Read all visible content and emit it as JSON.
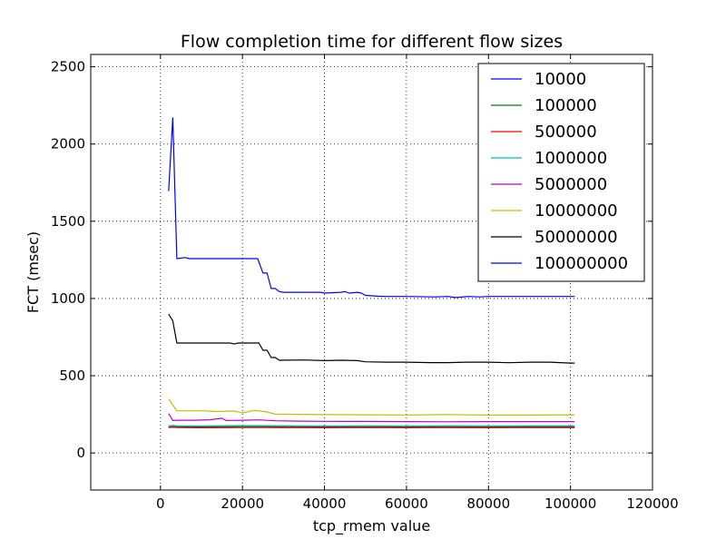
{
  "chart_data": {
    "type": "line",
    "title": "Flow completion time for different flow sizes",
    "xlabel": "tcp_rmem value",
    "ylabel": "FCT (msec)",
    "xlim": [
      -17000,
      120000
    ],
    "ylim": [
      -240,
      2580
    ],
    "x_ticks": [
      0,
      20000,
      40000,
      60000,
      80000,
      100000,
      120000
    ],
    "y_ticks": [
      0,
      500,
      1000,
      1500,
      2000,
      2500
    ],
    "grid": true,
    "grid_style": "dotted",
    "legend_position": "top-right",
    "series": [
      {
        "name": "10000",
        "color": "#0000ff",
        "points": [
          [
            2000,
            168
          ],
          [
            3000,
            172
          ],
          [
            4000,
            166
          ],
          [
            10000,
            165
          ],
          [
            20000,
            168
          ],
          [
            30000,
            164
          ],
          [
            40000,
            166
          ],
          [
            50000,
            165
          ],
          [
            60000,
            166
          ],
          [
            70000,
            164
          ],
          [
            80000,
            166
          ],
          [
            90000,
            165
          ],
          [
            101000,
            165
          ]
        ]
      },
      {
        "name": "100000",
        "color": "#008000",
        "points": [
          [
            2000,
            170
          ],
          [
            3000,
            173
          ],
          [
            4000,
            170
          ],
          [
            10000,
            172
          ],
          [
            20000,
            170
          ],
          [
            30000,
            171
          ],
          [
            40000,
            172
          ],
          [
            50000,
            170
          ],
          [
            60000,
            171
          ],
          [
            70000,
            172
          ],
          [
            80000,
            170
          ],
          [
            90000,
            171
          ],
          [
            101000,
            171
          ]
        ]
      },
      {
        "name": "500000",
        "color": "#ff0000",
        "points": [
          [
            2000,
            164
          ],
          [
            3000,
            166
          ],
          [
            4000,
            164
          ],
          [
            10000,
            163
          ],
          [
            20000,
            164
          ],
          [
            30000,
            165
          ],
          [
            40000,
            163
          ],
          [
            50000,
            164
          ],
          [
            60000,
            163
          ],
          [
            70000,
            164
          ],
          [
            80000,
            163
          ],
          [
            90000,
            164
          ],
          [
            101000,
            164
          ]
        ]
      },
      {
        "name": "1000000",
        "color": "#00bfbf",
        "points": [
          [
            2000,
            175
          ],
          [
            3000,
            178
          ],
          [
            4000,
            176
          ],
          [
            10000,
            175
          ],
          [
            20000,
            177
          ],
          [
            30000,
            176
          ],
          [
            40000,
            175
          ],
          [
            50000,
            176
          ],
          [
            60000,
            175
          ],
          [
            70000,
            176
          ],
          [
            80000,
            175
          ],
          [
            90000,
            176
          ],
          [
            101000,
            176
          ]
        ]
      },
      {
        "name": "5000000",
        "color": "#bf00bf",
        "points": [
          [
            2000,
            255
          ],
          [
            3000,
            210
          ],
          [
            4000,
            212
          ],
          [
            8000,
            212
          ],
          [
            12000,
            215
          ],
          [
            15000,
            225
          ],
          [
            16000,
            210
          ],
          [
            20000,
            212
          ],
          [
            24000,
            214
          ],
          [
            28000,
            208
          ],
          [
            34000,
            206
          ],
          [
            40000,
            205
          ],
          [
            50000,
            204
          ],
          [
            60000,
            203
          ],
          [
            70000,
            202
          ],
          [
            80000,
            203
          ],
          [
            90000,
            203
          ],
          [
            101000,
            203
          ]
        ]
      },
      {
        "name": "10000000",
        "color": "#bfbf00",
        "points": [
          [
            2000,
            350
          ],
          [
            4000,
            273
          ],
          [
            10000,
            273
          ],
          [
            14000,
            268
          ],
          [
            18000,
            272
          ],
          [
            20000,
            260
          ],
          [
            23000,
            276
          ],
          [
            26000,
            265
          ],
          [
            28000,
            252
          ],
          [
            34000,
            250
          ],
          [
            40000,
            248
          ],
          [
            50000,
            247
          ],
          [
            60000,
            246
          ],
          [
            70000,
            248
          ],
          [
            80000,
            245
          ],
          [
            90000,
            245
          ],
          [
            101000,
            247
          ]
        ]
      },
      {
        "name": "50000000",
        "color": "#000000",
        "points": [
          [
            2000,
            900
          ],
          [
            3000,
            855
          ],
          [
            4000,
            712
          ],
          [
            10000,
            712
          ],
          [
            17000,
            712
          ],
          [
            18000,
            705
          ],
          [
            19000,
            712
          ],
          [
            24000,
            712
          ],
          [
            25000,
            665
          ],
          [
            26000,
            665
          ],
          [
            27000,
            618
          ],
          [
            28000,
            618
          ],
          [
            29000,
            600
          ],
          [
            35000,
            602
          ],
          [
            40000,
            598
          ],
          [
            44000,
            600
          ],
          [
            48000,
            598
          ],
          [
            50000,
            590
          ],
          [
            55000,
            588
          ],
          [
            60000,
            588
          ],
          [
            66000,
            585
          ],
          [
            70000,
            585
          ],
          [
            75000,
            588
          ],
          [
            80000,
            588
          ],
          [
            85000,
            584
          ],
          [
            90000,
            588
          ],
          [
            95000,
            588
          ],
          [
            100000,
            582
          ],
          [
            101000,
            582
          ]
        ]
      },
      {
        "name": "100000000",
        "color": "#0000ff",
        "points": [
          [
            2000,
            1695
          ],
          [
            3000,
            2170
          ],
          [
            4000,
            1258
          ],
          [
            6000,
            1265
          ],
          [
            7000,
            1258
          ],
          [
            20000,
            1258
          ],
          [
            23700,
            1258
          ],
          [
            25000,
            1165
          ],
          [
            26000,
            1165
          ],
          [
            27000,
            1065
          ],
          [
            28000,
            1065
          ],
          [
            29000,
            1045
          ],
          [
            30000,
            1040
          ],
          [
            35000,
            1040
          ],
          [
            39000,
            1040
          ],
          [
            40000,
            1035
          ],
          [
            44000,
            1040
          ],
          [
            45000,
            1045
          ],
          [
            46000,
            1035
          ],
          [
            48000,
            1040
          ],
          [
            49000,
            1035
          ],
          [
            50000,
            1020
          ],
          [
            53000,
            1015
          ],
          [
            55000,
            1013
          ],
          [
            60000,
            1013
          ],
          [
            67000,
            1010
          ],
          [
            70000,
            1013
          ],
          [
            72000,
            1006
          ],
          [
            75000,
            1013
          ],
          [
            78000,
            1010
          ],
          [
            80000,
            1013
          ],
          [
            90000,
            1013
          ],
          [
            100000,
            1013
          ],
          [
            101000,
            1013
          ]
        ]
      }
    ]
  }
}
